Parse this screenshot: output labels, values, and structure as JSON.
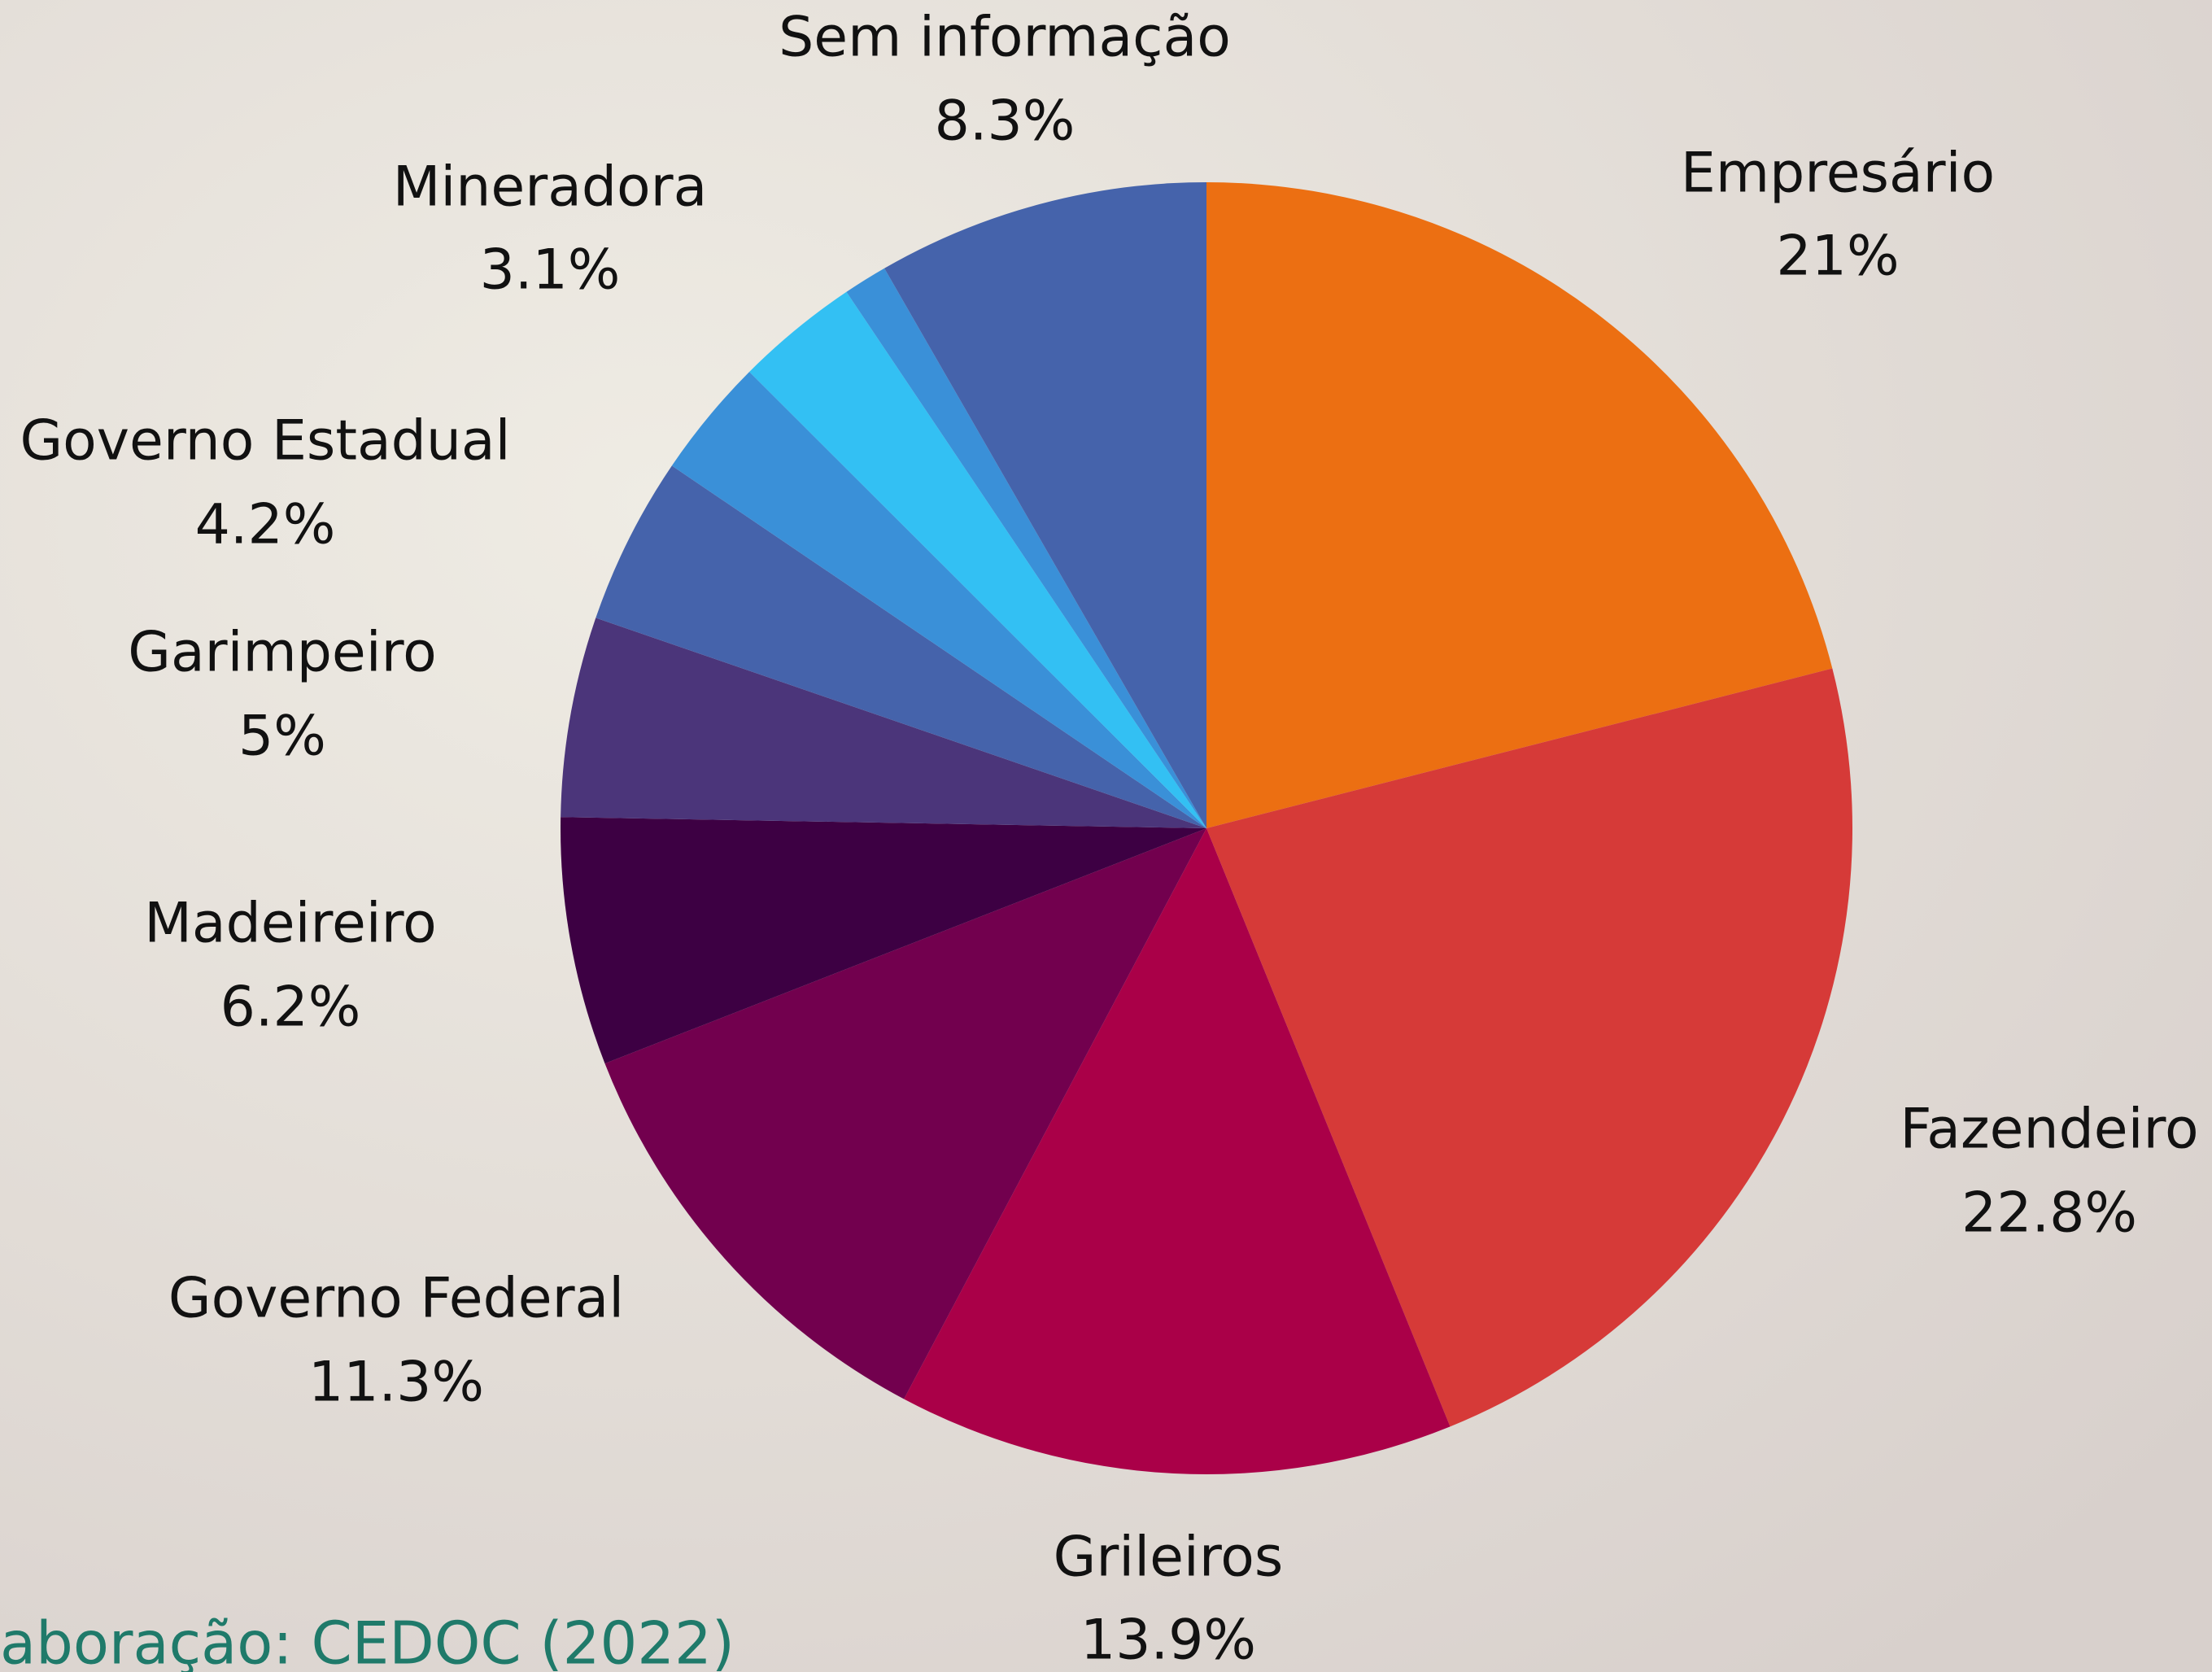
{
  "chart_data": {
    "type": "pie",
    "categories": [
      "Empresário",
      "Fazendeiro",
      "Grileiros",
      "Governo Federal",
      "Madeireiro",
      "Garimpeiro",
      "Governo Estadual",
      null,
      "Mineradora",
      null,
      "Sem informação"
    ],
    "values": [
      21,
      22.8,
      13.9,
      11.3,
      6.2,
      5,
      4.2,
      3,
      3.1,
      1.1,
      8.3
    ],
    "value_labels": [
      "21%",
      "22.8%",
      "13.9%",
      "11.3%",
      "6.2%",
      "5%",
      "4.2%",
      null,
      "3.1%",
      null,
      "8.3%"
    ],
    "colors": [
      "#ec6f12",
      "#d63a38",
      "#aa0048",
      "#72004e",
      "#3d0043",
      "#4b357a",
      "#4563ab",
      "#3a90d8",
      "#33c0f3",
      "#3a90d8",
      "#4563ab"
    ],
    "source": "aboração: CEDOC (2022)"
  }
}
